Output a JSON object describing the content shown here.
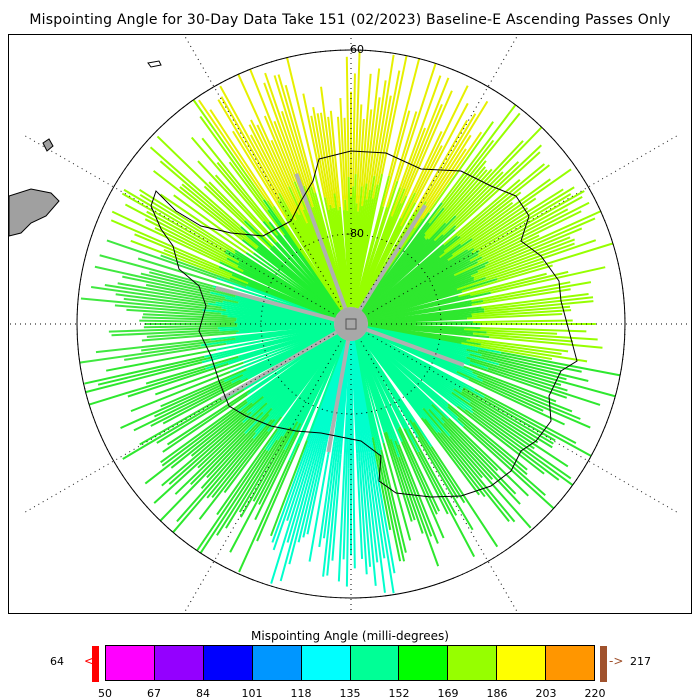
{
  "title": "Mispointing Angle for 30-Day Data Take 151 (02/2023) Baseline-E Ascending Passes Only",
  "map": {
    "projection": "south-polar-stereographic",
    "grid_labels": [
      "-60",
      "-80"
    ],
    "land_color": "#a0a0a0",
    "pole_marker_color": "#a8a8a8"
  },
  "colorbar": {
    "title": "Mispointing Angle (milli-degrees)",
    "min_value": "64",
    "max_value": "217",
    "under_symbol": "<",
    "over_symbol": "->",
    "under_color": "#ff0000",
    "over_color": "#a0522d",
    "ticks": [
      "50",
      "67",
      "84",
      "101",
      "118",
      "135",
      "152",
      "169",
      "186",
      "203",
      "220"
    ],
    "colors": [
      "#ff00ff",
      "#9400ff",
      "#0000ff",
      "#0096ff",
      "#00ffff",
      "#00ff96",
      "#00ff00",
      "#96ff00",
      "#ffff00",
      "#ff9600",
      "#ff0000"
    ]
  },
  "chart_data": {
    "type": "heatmap",
    "title": "Mispointing Angle for 30-Day Data Take 151 (02/2023) Baseline-E Ascending Passes Only",
    "colorbar_label": "Mispointing Angle (milli-degrees)",
    "colorbar_range": [
      50,
      220
    ],
    "data_min": 64,
    "data_max": 217,
    "latitude_labels": [
      "-60",
      "-80"
    ]
  }
}
